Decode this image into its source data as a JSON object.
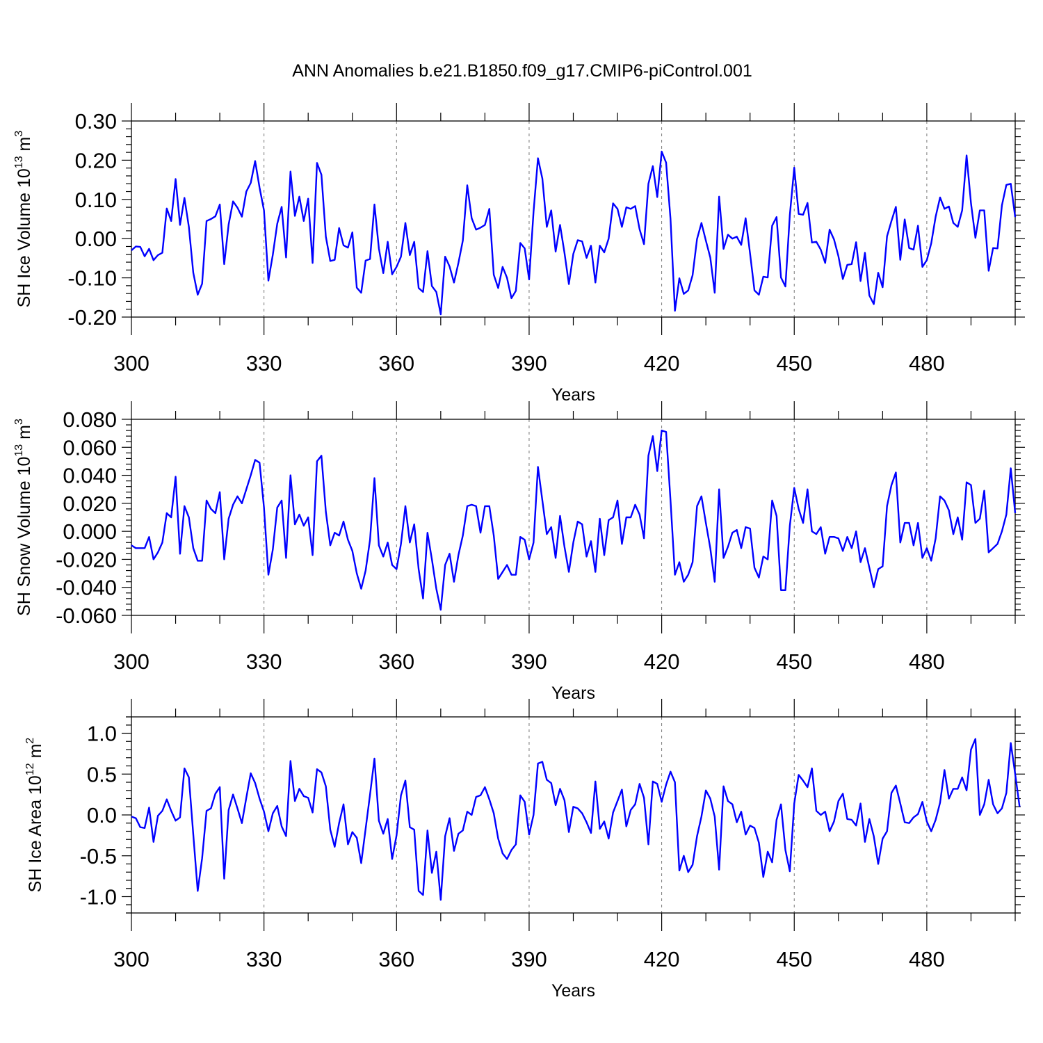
{
  "title": "ANN Anomalies b.e21.B1850.f09_g17.CMIP6-piControl.001",
  "colors": {
    "series": "#0000ff",
    "axis": "#000000",
    "grid": "#777777"
  },
  "chart_data": [
    {
      "type": "line",
      "name": "ice-volume",
      "ylabel_main": "SH Ice Volume 10",
      "ylabel_sup": "13",
      "ylabel_unit": " m",
      "ylabel_unit_sup": "3",
      "xlabel": "Years",
      "xlim": [
        300,
        500
      ],
      "ylim": [
        -0.2,
        0.3
      ],
      "x_ticks": [
        300,
        330,
        360,
        390,
        420,
        450,
        480
      ],
      "x_tick_labels": [
        "300",
        "330",
        "360",
        "390",
        "420",
        "450",
        "480"
      ],
      "y_ticks": [
        -0.2,
        -0.1,
        0.0,
        0.1,
        0.2,
        0.3
      ],
      "y_tick_labels": [
        "-0.20",
        "-0.10",
        "0.00",
        "0.10",
        "0.20",
        "0.30"
      ],
      "grid_x": true,
      "x_start": 300,
      "series": [
        {
          "name": "SH Ice Volume",
          "values": [
            -0.03,
            -0.02,
            -0.021,
            -0.045,
            -0.026,
            -0.055,
            -0.042,
            -0.036,
            0.077,
            0.045,
            0.152,
            0.035,
            0.104,
            0.03,
            -0.087,
            -0.143,
            -0.115,
            0.045,
            0.05,
            0.057,
            0.087,
            -0.065,
            0.036,
            0.095,
            0.079,
            0.056,
            0.12,
            0.142,
            0.198,
            0.13,
            0.072,
            -0.107,
            -0.041,
            0.038,
            0.081,
            -0.048,
            0.171,
            0.058,
            0.107,
            0.045,
            0.102,
            -0.062,
            0.193,
            0.163,
            0.005,
            -0.057,
            -0.054,
            0.027,
            -0.017,
            -0.023,
            0.016,
            -0.125,
            -0.138,
            -0.056,
            -0.052,
            0.087,
            -0.025,
            -0.088,
            -0.008,
            -0.091,
            -0.072,
            -0.046,
            0.04,
            -0.042,
            -0.008,
            -0.126,
            -0.136,
            -0.032,
            -0.121,
            -0.136,
            -0.193,
            -0.046,
            -0.071,
            -0.112,
            -0.062,
            -0.005,
            0.136,
            0.052,
            0.023,
            0.028,
            0.035,
            0.076,
            -0.092,
            -0.126,
            -0.072,
            -0.1,
            -0.152,
            -0.133,
            -0.011,
            -0.025,
            -0.104,
            0.068,
            0.205,
            0.153,
            0.03,
            0.072,
            -0.033,
            0.035,
            -0.036,
            -0.116,
            -0.039,
            -0.004,
            -0.007,
            -0.049,
            -0.018,
            -0.112,
            -0.018,
            -0.035,
            0.0,
            0.09,
            0.076,
            0.03,
            0.08,
            0.076,
            0.083,
            0.024,
            -0.014,
            0.14,
            0.185,
            0.106,
            0.222,
            0.194,
            0.05,
            -0.184,
            -0.101,
            -0.141,
            -0.132,
            -0.093,
            -0.001,
            0.04,
            -0.005,
            -0.048,
            -0.138,
            0.107,
            -0.026,
            0.01,
            0.0,
            0.005,
            -0.016,
            0.052,
            -0.038,
            -0.132,
            -0.143,
            -0.097,
            -0.099,
            0.033,
            0.055,
            -0.099,
            -0.122,
            0.06,
            0.181,
            0.063,
            0.061,
            0.091,
            -0.01,
            -0.008,
            -0.028,
            -0.062,
            0.023,
            -0.002,
            -0.045,
            -0.103,
            -0.067,
            -0.065,
            -0.009,
            -0.108,
            -0.036,
            -0.145,
            -0.167,
            -0.087,
            -0.124,
            0.006,
            0.045,
            0.081,
            -0.054,
            0.049,
            -0.024,
            -0.028,
            0.033,
            -0.072,
            -0.055,
            -0.012,
            0.056,
            0.105,
            0.076,
            0.082,
            0.04,
            0.03,
            0.072,
            0.212,
            0.09,
            0.002,
            0.072,
            0.072,
            -0.082,
            -0.024,
            -0.025,
            0.085,
            0.137,
            0.14,
            0.055
          ]
        }
      ]
    },
    {
      "type": "line",
      "name": "snow-volume",
      "ylabel_main": "SH Snow Volume 10",
      "ylabel_sup": "13",
      "ylabel_unit": " m",
      "ylabel_unit_sup": "3",
      "xlabel": "Years",
      "xlim": [
        300,
        500
      ],
      "ylim": [
        -0.06,
        0.08
      ],
      "x_ticks": [
        300,
        330,
        360,
        390,
        420,
        450,
        480
      ],
      "x_tick_labels": [
        "300",
        "330",
        "360",
        "390",
        "420",
        "450",
        "480"
      ],
      "y_ticks": [
        -0.06,
        -0.04,
        -0.02,
        0.0,
        0.02,
        0.04,
        0.06,
        0.08
      ],
      "y_tick_labels": [
        "-0.060",
        "-0.040",
        "-0.020",
        "0.000",
        "0.020",
        "0.040",
        "0.060",
        "0.080"
      ],
      "grid_x": true,
      "x_start": 300,
      "series": [
        {
          "name": "SH Snow Volume",
          "values": [
            -0.01,
            -0.012,
            -0.012,
            -0.012,
            -0.004,
            -0.02,
            -0.015,
            -0.008,
            0.013,
            0.01,
            0.039,
            -0.016,
            0.018,
            0.01,
            -0.012,
            -0.021,
            -0.021,
            0.022,
            0.016,
            0.013,
            0.028,
            -0.02,
            0.009,
            0.019,
            0.025,
            0.02,
            0.03,
            0.04,
            0.051,
            0.049,
            0.017,
            -0.031,
            -0.013,
            0.017,
            0.022,
            -0.019,
            0.04,
            0.005,
            0.012,
            0.004,
            0.01,
            -0.017,
            0.05,
            0.054,
            0.014,
            -0.01,
            -0.001,
            -0.003,
            0.007,
            -0.006,
            -0.014,
            -0.03,
            -0.041,
            -0.028,
            -0.006,
            0.038,
            -0.01,
            -0.018,
            -0.008,
            -0.024,
            -0.027,
            -0.009,
            0.018,
            -0.008,
            0.005,
            -0.027,
            -0.048,
            -0.001,
            -0.02,
            -0.041,
            -0.056,
            -0.024,
            -0.016,
            -0.036,
            -0.017,
            -0.003,
            0.018,
            0.019,
            0.018,
            -0.001,
            0.018,
            0.018,
            -0.003,
            -0.034,
            -0.029,
            -0.024,
            -0.031,
            -0.031,
            -0.004,
            -0.006,
            -0.02,
            -0.008,
            0.046,
            0.022,
            -0.002,
            0.003,
            -0.019,
            0.011,
            -0.011,
            -0.029,
            -0.008,
            0.007,
            0.005,
            -0.018,
            -0.007,
            -0.029,
            0.009,
            -0.017,
            0.008,
            0.01,
            0.022,
            -0.009,
            0.01,
            0.01,
            0.019,
            0.012,
            -0.005,
            0.054,
            0.068,
            0.043,
            0.072,
            0.071,
            0.022,
            -0.031,
            -0.022,
            -0.036,
            -0.031,
            -0.022,
            0.018,
            0.025,
            0.006,
            -0.012,
            -0.036,
            0.03,
            -0.019,
            -0.011,
            -0.001,
            0.001,
            -0.012,
            0.003,
            0.002,
            -0.026,
            -0.033,
            -0.018,
            -0.02,
            0.022,
            0.011,
            -0.042,
            -0.042,
            0.004,
            0.031,
            0.016,
            0.006,
            0.03,
            0.0,
            -0.002,
            0.003,
            -0.016,
            -0.004,
            -0.004,
            -0.005,
            -0.014,
            -0.004,
            -0.012,
            0.0,
            -0.022,
            -0.012,
            -0.026,
            -0.04,
            -0.027,
            -0.025,
            0.018,
            0.033,
            0.042,
            -0.008,
            0.006,
            0.006,
            -0.01,
            0.006,
            -0.019,
            -0.012,
            -0.021,
            -0.005,
            0.025,
            0.022,
            0.015,
            -0.002,
            0.01,
            -0.006,
            0.035,
            0.033,
            0.006,
            0.009,
            0.029,
            -0.015,
            -0.012,
            -0.009,
            0.0,
            0.012,
            0.045,
            0.013
          ]
        }
      ]
    },
    {
      "type": "line",
      "name": "ice-area",
      "ylabel_main": "SH Ice Area 10",
      "ylabel_sup": "12",
      "ylabel_unit": " m",
      "ylabel_unit_sup": "2",
      "xlabel": "Years",
      "xlim": [
        300,
        500
      ],
      "ylim": [
        -1.2,
        1.2
      ],
      "x_ticks": [
        300,
        330,
        360,
        390,
        420,
        450,
        480
      ],
      "x_tick_labels": [
        "300",
        "330",
        "360",
        "390",
        "420",
        "450",
        "480"
      ],
      "y_ticks": [
        -1.0,
        -0.5,
        0.0,
        0.5,
        1.0
      ],
      "y_tick_labels": [
        "-1.0",
        "-0.5",
        "0.0",
        "0.5",
        "1.0"
      ],
      "grid_x": true,
      "x_start": 300,
      "series": [
        {
          "name": "SH Ice Area",
          "values": [
            -0.02,
            -0.04,
            -0.15,
            -0.16,
            0.09,
            -0.33,
            -0.01,
            0.05,
            0.19,
            0.05,
            -0.07,
            -0.03,
            0.57,
            0.46,
            -0.24,
            -0.93,
            -0.53,
            0.05,
            0.08,
            0.26,
            0.34,
            -0.78,
            0.06,
            0.25,
            0.08,
            -0.1,
            0.21,
            0.51,
            0.39,
            0.2,
            0.04,
            -0.2,
            0.02,
            0.11,
            -0.14,
            -0.26,
            0.66,
            0.17,
            0.32,
            0.23,
            0.21,
            0.03,
            0.56,
            0.52,
            0.35,
            -0.18,
            -0.39,
            -0.1,
            0.13,
            -0.36,
            -0.21,
            -0.28,
            -0.59,
            -0.17,
            0.25,
            0.69,
            -0.07,
            -0.23,
            -0.05,
            -0.54,
            -0.25,
            0.24,
            0.42,
            -0.15,
            -0.18,
            -0.93,
            -0.98,
            -0.19,
            -0.71,
            -0.45,
            -1.04,
            -0.26,
            -0.04,
            -0.44,
            -0.23,
            -0.19,
            0.04,
            0.0,
            0.22,
            0.24,
            0.34,
            0.19,
            0.02,
            -0.29,
            -0.47,
            -0.54,
            -0.43,
            -0.36,
            0.24,
            0.16,
            -0.24,
            0.0,
            0.63,
            0.65,
            0.43,
            0.39,
            0.12,
            0.32,
            0.18,
            -0.21,
            0.1,
            0.08,
            0.02,
            -0.09,
            -0.22,
            0.41,
            -0.17,
            -0.08,
            -0.29,
            0.03,
            0.17,
            0.31,
            -0.14,
            0.06,
            0.13,
            0.38,
            0.21,
            -0.36,
            0.41,
            0.38,
            0.16,
            0.37,
            0.53,
            0.4,
            -0.68,
            -0.5,
            -0.7,
            -0.61,
            -0.26,
            -0.02,
            0.3,
            0.2,
            -0.02,
            -0.67,
            0.35,
            0.17,
            0.13,
            -0.09,
            0.04,
            -0.24,
            -0.13,
            -0.16,
            -0.34,
            -0.76,
            -0.45,
            -0.58,
            -0.06,
            0.13,
            -0.43,
            -0.69,
            0.14,
            0.49,
            0.42,
            0.34,
            0.57,
            0.05,
            0.0,
            0.04,
            -0.2,
            -0.08,
            0.17,
            0.26,
            -0.05,
            -0.06,
            -0.13,
            0.14,
            -0.33,
            -0.05,
            -0.26,
            -0.6,
            -0.29,
            -0.2,
            0.27,
            0.36,
            0.14,
            -0.09,
            -0.1,
            -0.03,
            0.01,
            0.16,
            -0.08,
            -0.2,
            -0.06,
            0.15,
            0.55,
            0.2,
            0.32,
            0.32,
            0.46,
            0.3,
            0.8,
            0.93,
            0.0,
            0.13,
            0.43,
            0.13,
            0.02,
            0.08,
            0.27,
            0.88,
            0.5,
            0.1
          ]
        }
      ]
    }
  ]
}
